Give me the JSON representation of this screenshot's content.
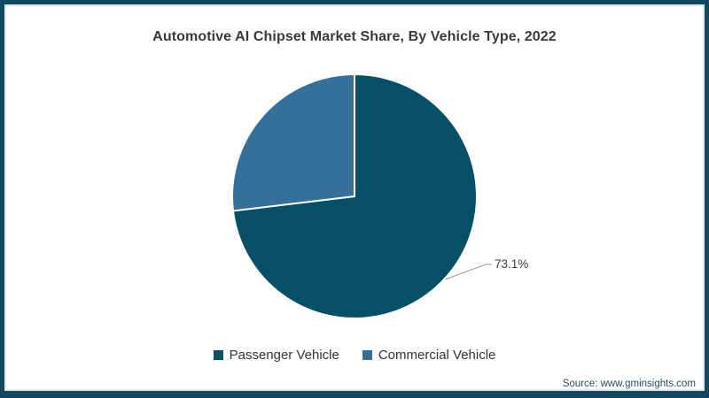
{
  "chart_data": {
    "type": "pie",
    "title": "Automotive AI Chipset Market Share, By Vehicle Type, 2022",
    "slices": [
      {
        "label": "Passenger Vehicle",
        "value": 73.1,
        "color": "#065067"
      },
      {
        "label": "Commercial Vehicle",
        "value": 26.9,
        "color": "#35709A"
      }
    ],
    "data_label": "73.1%",
    "start_angle_deg": 0,
    "direction": "clockwise",
    "legend_position": "bottom",
    "slice_divider_color": "#ffffff"
  },
  "footer": {
    "source_text": "Source: www.gminsights.com"
  },
  "colors": {
    "frame_border": "#11485f",
    "title_text": "#3a3a3a",
    "legend_text": "#333333",
    "source_text": "#2c4a63",
    "leader_line": "#9a9a9a"
  }
}
